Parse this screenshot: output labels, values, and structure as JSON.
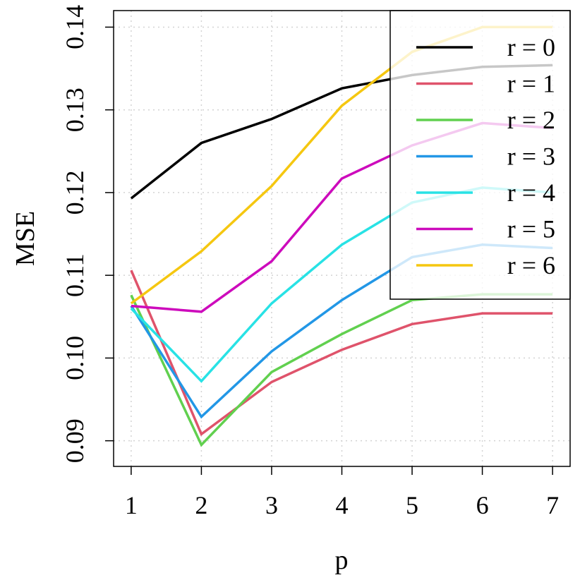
{
  "chart_data": {
    "type": "line",
    "title": "",
    "xlabel": "p",
    "ylabel": "MSE",
    "x": [
      1,
      2,
      3,
      4,
      5,
      6,
      7
    ],
    "xlim": [
      0.75,
      7.25
    ],
    "ylim": [
      0.0869,
      0.142
    ],
    "xticks": [
      1,
      2,
      3,
      4,
      5,
      6,
      7
    ],
    "xtick_labels": [
      "1",
      "2",
      "3",
      "4",
      "5",
      "6",
      "7"
    ],
    "yticks": [
      0.09,
      0.1,
      0.11,
      0.12,
      0.13,
      0.14
    ],
    "ytick_labels": [
      "0.09",
      "0.10",
      "0.11",
      "0.12",
      "0.13",
      "0.14"
    ],
    "grid": true,
    "legend_position": "top-right",
    "series": [
      {
        "name": "r = 0",
        "color": "#000000",
        "values": [
          0.1193,
          0.126,
          0.1289,
          0.1326,
          0.1342,
          0.1352,
          0.1354
        ]
      },
      {
        "name": "r = 1",
        "color": "#DF536B",
        "values": [
          0.1106,
          0.0908,
          0.0971,
          0.101,
          0.1041,
          0.1054,
          0.1054
        ]
      },
      {
        "name": "r = 2",
        "color": "#61D04F",
        "values": [
          0.1076,
          0.0895,
          0.0983,
          0.1029,
          0.107,
          0.1077,
          0.1077
        ]
      },
      {
        "name": "r = 3",
        "color": "#2297E6",
        "values": [
          0.1063,
          0.0929,
          0.1008,
          0.107,
          0.1122,
          0.1137,
          0.1133
        ]
      },
      {
        "name": "r = 4",
        "color": "#28E2E5",
        "values": [
          0.106,
          0.0972,
          0.1066,
          0.1137,
          0.1188,
          0.1206,
          0.12
        ]
      },
      {
        "name": "r = 5",
        "color": "#CD0BBC",
        "values": [
          0.1063,
          0.1056,
          0.1117,
          0.1217,
          0.1257,
          0.1284,
          0.1278
        ]
      },
      {
        "name": "r = 6",
        "color": "#F5C710",
        "values": [
          0.1066,
          0.1129,
          0.1208,
          0.1305,
          0.137,
          0.14,
          0.14
        ]
      }
    ]
  }
}
